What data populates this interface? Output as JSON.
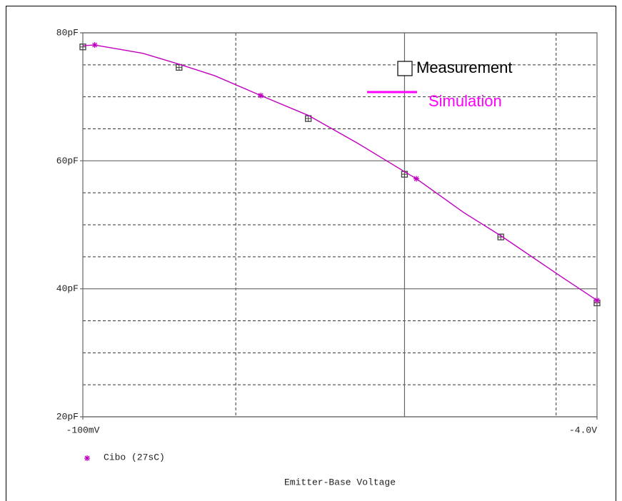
{
  "chart_data": {
    "type": "line",
    "xlabel": "Emitter-Base Voltage",
    "xlim": [
      -0.1,
      -4.0
    ],
    "ylim": [
      20,
      80
    ],
    "xticks": [
      {
        "value": -0.1,
        "label": "-100mV"
      },
      {
        "value": -4.0,
        "label": "-4.0V"
      }
    ],
    "yticks": [
      {
        "value": 20,
        "label": "20pF"
      },
      {
        "value": 40,
        "label": "40pF"
      },
      {
        "value": 60,
        "label": "60pF"
      },
      {
        "value": 80,
        "label": "80pF"
      }
    ],
    "grid": true,
    "xgrid_major": [
      -2.54
    ],
    "xgrid_minor": [
      -1.26,
      -3.69
    ],
    "ygrid_minor": [
      75,
      70,
      65,
      55,
      50,
      45,
      35,
      30,
      25
    ],
    "legend": "upper right",
    "series": [
      {
        "name": "Measurement",
        "color": "#404040",
        "marker": "square",
        "x": [
          -0.1,
          -0.83,
          -1.81,
          -2.54,
          -3.27,
          -4.0
        ],
        "values": [
          77.8,
          74.6,
          66.6,
          57.9,
          48.1,
          37.8
        ]
      },
      {
        "name": "Simulation",
        "color": "#c000c0",
        "x": [
          -0.1,
          -0.19,
          -0.555,
          -0.83,
          -1.1,
          -1.45,
          -1.81,
          -2.18,
          -2.54,
          -2.63,
          -2.99,
          -3.27,
          -3.75,
          -4.0
        ],
        "values": [
          78.0,
          78.1,
          76.8,
          75.1,
          73.3,
          70.2,
          67.1,
          62.8,
          58.3,
          57.2,
          51.9,
          48.3,
          41.6,
          38.2
        ]
      }
    ],
    "trace_legend": {
      "name": "Cibo (27sC)",
      "color": "#c000c0"
    }
  }
}
